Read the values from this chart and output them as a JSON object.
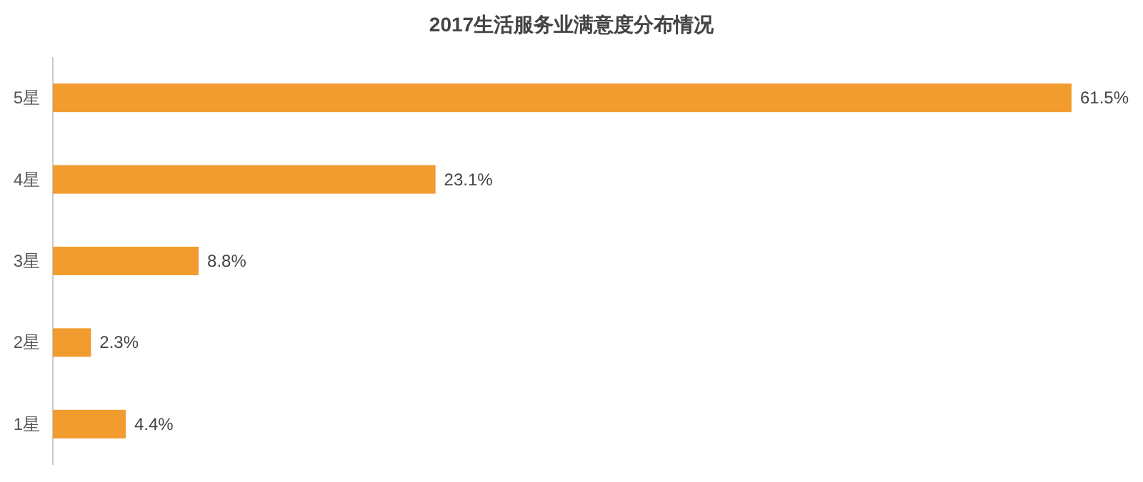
{
  "chart_data": {
    "type": "bar",
    "orientation": "horizontal",
    "title": "2017生活服务业满意度分布情况",
    "categories": [
      "5星",
      "4星",
      "3星",
      "2星",
      "1星"
    ],
    "values": [
      61.5,
      23.1,
      8.8,
      2.3,
      4.4
    ],
    "value_labels": [
      "61.5%",
      "23.1%",
      "8.8%",
      "2.3%",
      "4.4%"
    ],
    "color": "#f29b2e"
  }
}
